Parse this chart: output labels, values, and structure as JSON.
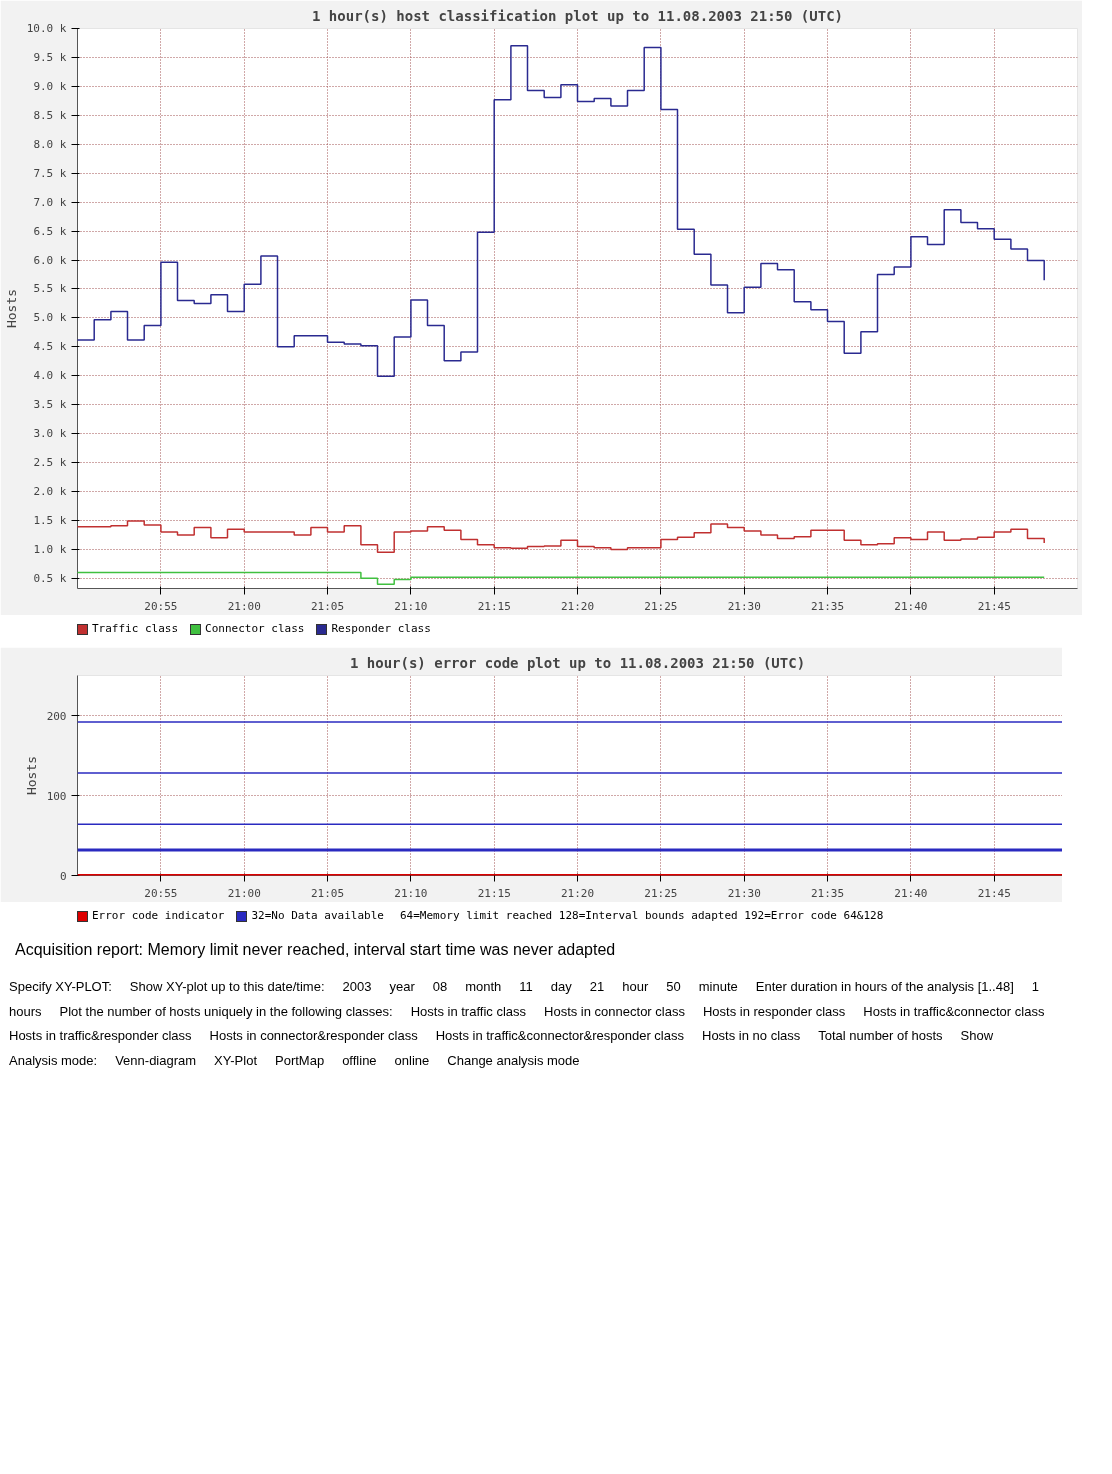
{
  "chart_data": [
    {
      "type": "step",
      "title": "1 hour(s) host classification plot up to 11.08.2003 21:50 (UTC)",
      "ylabel": "Hosts",
      "x": [
        20.8333,
        20.85,
        20.8667,
        20.8833,
        20.9,
        20.9167,
        20.9333,
        20.95,
        20.9667,
        20.9833,
        21.0,
        21.0167,
        21.0333,
        21.05,
        21.0667,
        21.0833,
        21.1,
        21.1167,
        21.1333,
        21.15,
        21.1667,
        21.1833,
        21.2,
        21.2167,
        21.2333,
        21.25,
        21.2667,
        21.2833,
        21.3,
        21.3167,
        21.3333,
        21.35,
        21.3667,
        21.3833,
        21.4,
        21.4167,
        21.4333,
        21.45,
        21.4667,
        21.4833,
        21.5,
        21.5167,
        21.5333,
        21.55,
        21.5667,
        21.5833,
        21.6,
        21.6167,
        21.6333,
        21.65,
        21.6667,
        21.6833,
        21.7,
        21.7167,
        21.7333,
        21.75,
        21.7667,
        21.7833,
        21.8
      ],
      "series": [
        {
          "name": "Traffic class",
          "color": "#c03030",
          "values": [
            1390,
            1390,
            1410,
            1490,
            1420,
            1300,
            1250,
            1380,
            1200,
            1350,
            1300,
            1300,
            1300,
            1250,
            1380,
            1300,
            1410,
            1080,
            950,
            1300,
            1320,
            1390,
            1330,
            1170,
            1080,
            1030,
            1020,
            1050,
            1060,
            1160,
            1050,
            1030,
            1000,
            1030,
            1030,
            1170,
            1210,
            1290,
            1440,
            1380,
            1320,
            1250,
            1190,
            1220,
            1330,
            1330,
            1160,
            1080,
            1100,
            1200,
            1170,
            1300,
            1160,
            1180,
            1210,
            1300,
            1350,
            1190,
            1110
          ]
        },
        {
          "name": "Connector class",
          "color": "#40c040",
          "values": [
            600,
            600,
            600,
            600,
            600,
            600,
            600,
            600,
            600,
            600,
            600,
            600,
            600,
            600,
            600,
            600,
            600,
            500,
            400,
            480,
            520,
            520,
            520,
            520,
            520,
            520,
            520,
            520,
            520,
            520,
            520,
            520,
            520,
            520,
            520,
            520,
            520,
            520,
            520,
            520,
            520,
            520,
            520,
            520,
            520,
            520,
            520,
            520,
            520,
            520,
            520,
            520,
            520,
            520,
            520,
            520,
            520,
            520,
            520
          ]
        },
        {
          "name": "Responder class",
          "color": "#2a2a90",
          "values": [
            4620,
            4970,
            5110,
            4620,
            4870,
            5960,
            5300,
            5250,
            5400,
            5110,
            5580,
            6070,
            4500,
            4690,
            4690,
            4580,
            4550,
            4520,
            3990,
            4670,
            5310,
            4870,
            4260,
            4410,
            6480,
            8770,
            9700,
            8930,
            8810,
            9030,
            8740,
            8790,
            8660,
            8930,
            9670,
            8600,
            6530,
            6100,
            5570,
            5090,
            5530,
            5940,
            5830,
            5280,
            5140,
            4940,
            4390,
            4760,
            5750,
            5880,
            6400,
            6270,
            6870,
            6650,
            6540,
            6360,
            6190,
            5990,
            5650
          ]
        }
      ],
      "xlim": [
        20.8333,
        21.8333
      ],
      "xticks": [
        {
          "value": 20.9167,
          "label": "20:55"
        },
        {
          "value": 21.0,
          "label": "21:00"
        },
        {
          "value": 21.0833,
          "label": "21:05"
        },
        {
          "value": 21.1667,
          "label": "21:10"
        },
        {
          "value": 21.25,
          "label": "21:15"
        },
        {
          "value": 21.3333,
          "label": "21:20"
        },
        {
          "value": 21.4167,
          "label": "21:25"
        },
        {
          "value": 21.5,
          "label": "21:30"
        },
        {
          "value": 21.5833,
          "label": "21:35"
        },
        {
          "value": 21.6667,
          "label": "21:40"
        },
        {
          "value": 21.75,
          "label": "21:45"
        }
      ],
      "ylim": [
        325,
        10000
      ],
      "yticks": [
        {
          "value": 500,
          "label": "0.5 k"
        },
        {
          "value": 1000,
          "label": "1.0 k"
        },
        {
          "value": 1500,
          "label": "1.5 k"
        },
        {
          "value": 2000,
          "label": "2.0 k"
        },
        {
          "value": 2500,
          "label": "2.5 k"
        },
        {
          "value": 3000,
          "label": "3.0 k"
        },
        {
          "value": 3500,
          "label": "3.5 k"
        },
        {
          "value": 4000,
          "label": "4.0 k"
        },
        {
          "value": 4500,
          "label": "4.5 k"
        },
        {
          "value": 5000,
          "label": "5.0 k"
        },
        {
          "value": 5500,
          "label": "5.5 k"
        },
        {
          "value": 6000,
          "label": "6.0 k"
        },
        {
          "value": 6500,
          "label": "6.5 k"
        },
        {
          "value": 7000,
          "label": "7.0 k"
        },
        {
          "value": 7500,
          "label": "7.5 k"
        },
        {
          "value": 8000,
          "label": "8.0 k"
        },
        {
          "value": 8500,
          "label": "8.5 k"
        },
        {
          "value": 9000,
          "label": "9.0 k"
        },
        {
          "value": 9500,
          "label": "9.5 k"
        },
        {
          "value": 10000,
          "label": "10.0 k"
        }
      ],
      "grid": true,
      "legend": "bottom"
    },
    {
      "type": "line",
      "title": "1 hour(s) error code plot up to 11.08.2003 21:50 (UTC)",
      "ylabel": "Hosts",
      "ref_lines": [
        {
          "axis": "y",
          "value": 0,
          "label": "Error code indicator",
          "color": "#dd0000"
        },
        {
          "axis": "y",
          "value": 32,
          "label": "32=No Data available",
          "color": "#2a2ac0"
        },
        {
          "axis": "y",
          "value": 64,
          "label": null,
          "color": "#2a2ac0"
        },
        {
          "axis": "y",
          "value": 128,
          "label": null,
          "color": "#2a2ac0"
        },
        {
          "axis": "y",
          "value": 192,
          "label": null,
          "color": "#2a2ac0"
        }
      ],
      "xlim": [
        20.8333,
        21.8333
      ],
      "xticks": [
        {
          "value": 20.9167,
          "label": "20:55"
        },
        {
          "value": 21.0,
          "label": "21:00"
        },
        {
          "value": 21.0833,
          "label": "21:05"
        },
        {
          "value": 21.1667,
          "label": "21:10"
        },
        {
          "value": 21.25,
          "label": "21:15"
        },
        {
          "value": 21.3333,
          "label": "21:20"
        },
        {
          "value": 21.4167,
          "label": "21:25"
        },
        {
          "value": 21.5,
          "label": "21:30"
        },
        {
          "value": 21.5833,
          "label": "21:35"
        },
        {
          "value": 21.6667,
          "label": "21:40"
        },
        {
          "value": 21.75,
          "label": "21:45"
        }
      ],
      "ylim": [
        0,
        250
      ],
      "yticks": [
        0,
        100,
        200
      ],
      "grid": true,
      "legend": "bottom",
      "annotations": [
        "64=Memory limit reached 128=Interval bounds adapted 192=Error code 64&128",
        "Acquisition report: Memory limit never reached, interval start time was never adapted"
      ]
    },
    {
      "type": "other",
      "annotations": [
        "Specify XY-PLOT:",
        "Show XY-plot up to this date/time:",
        "2003",
        "year",
        "08",
        "month",
        "11",
        "day",
        "21",
        "hour",
        "50",
        "minute",
        "Enter duration in hours of the analysis [1..48]",
        "1",
        "hours",
        "Plot the number of hosts uniquely in the following classes:",
        "Hosts in traffic class",
        "Hosts in connector class",
        "Hosts in responder class",
        "Hosts in traffic&connector class",
        "Hosts in traffic&responder class",
        "Hosts in connector&responder class",
        "Hosts in traffic&connector&responder class",
        "Hosts in no class",
        "Total number of hosts",
        "Show",
        "Analysis mode:",
        "Venn-diagram",
        "XY-Plot",
        "PortMap",
        "offline",
        "online",
        "Change analysis mode"
      ]
    }
  ]
}
